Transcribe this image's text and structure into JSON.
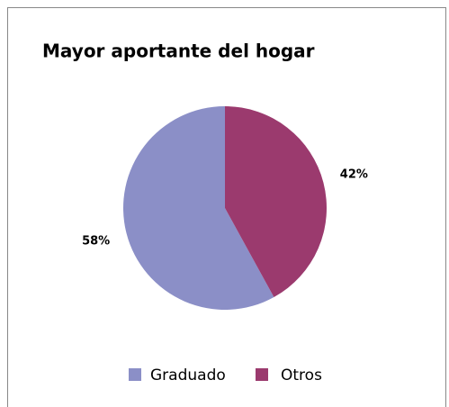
{
  "chart_data": {
    "type": "pie",
    "title": "Mayor aportante del hogar",
    "categories": [
      "Graduado",
      "Otros"
    ],
    "values": [
      58,
      42
    ],
    "value_labels": [
      "58%",
      "42%"
    ],
    "colors": [
      "#8b8fc7",
      "#9b3a6e"
    ],
    "legend": "bottom"
  }
}
